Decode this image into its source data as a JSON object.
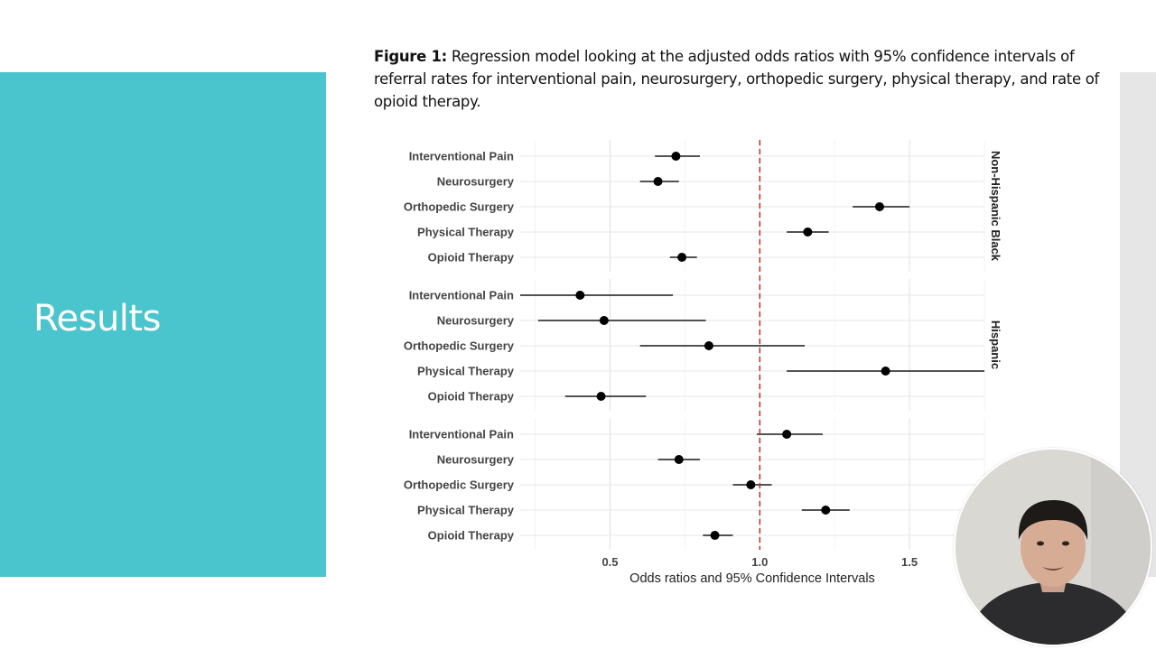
{
  "slide": {
    "title": "Results"
  },
  "caption": {
    "label": "Figure 1:",
    "text": " Regression model looking at the adjusted odds ratios with 95% confidence intervals of referral rates for interventional pain, neurosurgery, orthopedic surgery, physical therapy, and rate of opioid therapy."
  },
  "colors": {
    "panel": "#4ac4cd",
    "reference_line": "#c0392b",
    "points": "#000000"
  },
  "chart_data": {
    "type": "scatter",
    "style": "forest-plot",
    "xlabel": "Odds ratios and 95% Confidence Intervals",
    "xlim": [
      0.2,
      1.75
    ],
    "x_ticks": [
      0.5,
      1.0,
      1.5
    ],
    "x_tick_labels": [
      "0.5",
      "1.0",
      "1.5"
    ],
    "reference_line": 1.0,
    "grid": true,
    "categories": [
      "Interventional Pain",
      "Neurosurgery",
      "Orthopedic Surgery",
      "Physical Therapy",
      "Opioid Therapy"
    ],
    "panels": [
      {
        "name": "Non-Hispanic Black",
        "estimates": [
          0.72,
          0.66,
          1.4,
          1.16,
          0.74
        ],
        "ci_low": [
          0.65,
          0.6,
          1.31,
          1.09,
          0.7
        ],
        "ci_high": [
          0.8,
          0.73,
          1.5,
          1.23,
          0.79
        ]
      },
      {
        "name": "Hispanic",
        "estimates": [
          0.4,
          0.48,
          0.83,
          1.42,
          0.47
        ],
        "ci_low": [
          0.2,
          0.26,
          0.6,
          1.09,
          0.35
        ],
        "ci_high": [
          0.71,
          0.82,
          1.15,
          1.85,
          0.62
        ]
      },
      {
        "name": "",
        "estimates": [
          1.09,
          0.73,
          0.97,
          1.22,
          0.85
        ],
        "ci_low": [
          0.99,
          0.66,
          0.91,
          1.14,
          0.81
        ],
        "ci_high": [
          1.21,
          0.8,
          1.04,
          1.3,
          0.91
        ]
      }
    ]
  },
  "webcam": {
    "icon": "presenter-webcam-icon"
  }
}
